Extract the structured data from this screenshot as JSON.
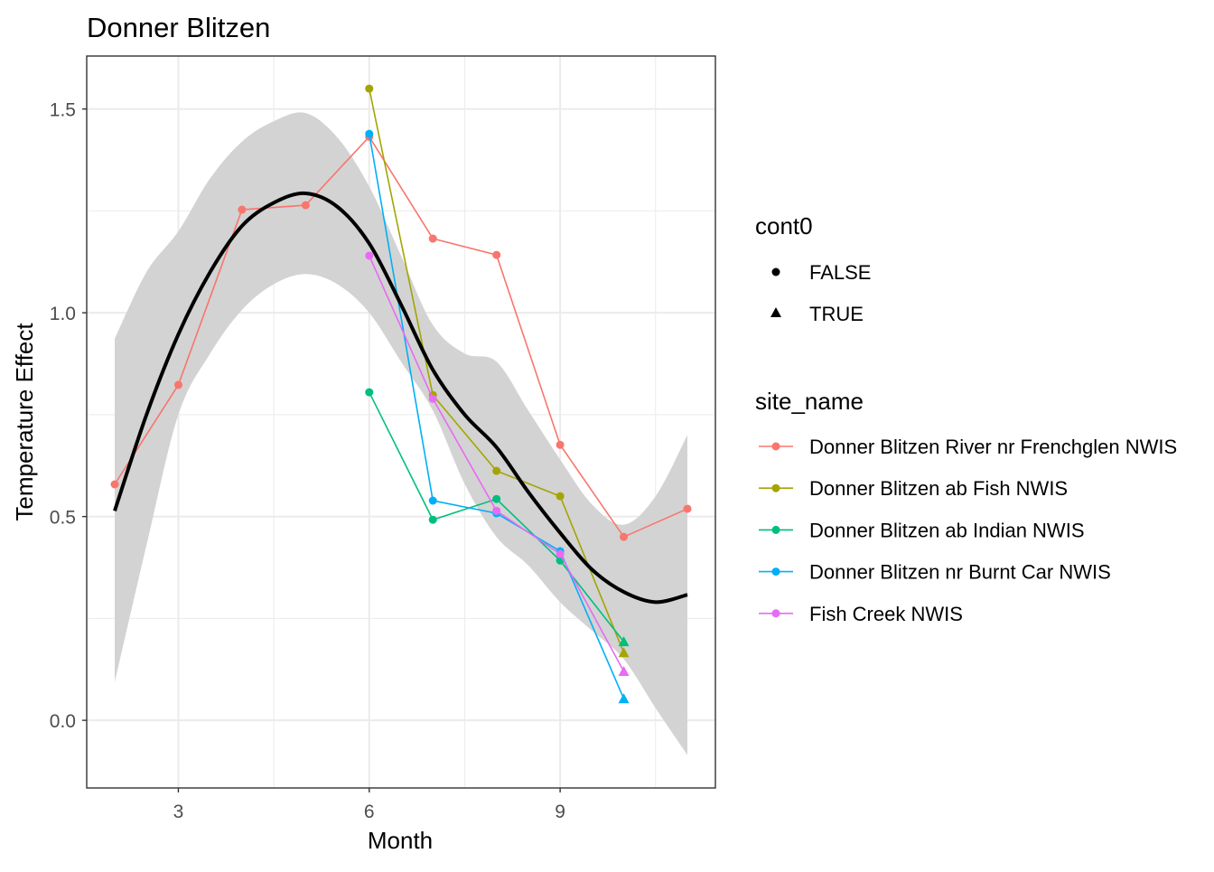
{
  "chart_data": {
    "type": "line",
    "title": "Donner Blitzen",
    "xlabel": "Month",
    "ylabel": "Temperature Effect",
    "xlim": [
      1.56,
      11.44
    ],
    "ylim": [
      -0.166,
      1.63
    ],
    "x_ticks": [
      3,
      6,
      9
    ],
    "y_ticks": [
      0.0,
      0.5,
      1.0,
      1.5
    ],
    "x_tick_labels": [
      "3",
      "6",
      "9"
    ],
    "y_tick_labels": [
      "0.0",
      "0.5",
      "1.0",
      "1.5"
    ],
    "grid": true,
    "legend_position": "right",
    "shape_legend": {
      "title": "cont0",
      "entries": [
        {
          "label": "FALSE",
          "shape": "circle"
        },
        {
          "label": "TRUE",
          "shape": "triangle"
        }
      ]
    },
    "color_legend": {
      "title": "site_name"
    },
    "series": [
      {
        "name": "Donner Blitzen River nr Frenchglen NWIS",
        "color": "#F8766D",
        "x": [
          2,
          3,
          4,
          5,
          6,
          7,
          8,
          9,
          10,
          11
        ],
        "y": [
          0.579,
          0.823,
          1.253,
          1.264,
          1.432,
          1.182,
          1.142,
          0.676,
          0.45,
          0.519
        ],
        "cont0": [
          false,
          false,
          false,
          false,
          false,
          false,
          false,
          false,
          false,
          false
        ]
      },
      {
        "name": "Donner Blitzen ab Fish NWIS",
        "color": "#A3A500",
        "x": [
          6,
          7,
          8,
          9,
          10
        ],
        "y": [
          1.55,
          0.798,
          0.612,
          0.55,
          0.166
        ],
        "cont0": [
          false,
          false,
          false,
          false,
          true
        ]
      },
      {
        "name": "Donner Blitzen ab Indian NWIS",
        "color": "#00BF7D",
        "x": [
          6,
          7,
          8,
          9,
          10
        ],
        "y": [
          0.805,
          0.492,
          0.543,
          0.392,
          0.193
        ],
        "cont0": [
          false,
          false,
          false,
          false,
          true
        ]
      },
      {
        "name": "Donner Blitzen nr Burnt Car NWIS",
        "color": "#00B0F6",
        "x": [
          6,
          7,
          8,
          9,
          10
        ],
        "y": [
          1.439,
          0.539,
          0.508,
          0.415,
          0.053
        ],
        "cont0": [
          false,
          false,
          false,
          false,
          true
        ]
      },
      {
        "name": "Fish Creek NWIS",
        "color": "#E76BF3",
        "x": [
          6,
          7,
          8,
          9,
          10
        ],
        "y": [
          1.14,
          0.789,
          0.514,
          0.408,
          0.12
        ],
        "cont0": [
          false,
          false,
          false,
          false,
          true
        ]
      }
    ],
    "smooth": {
      "color": "#000000",
      "ribbon_color": "#D3D3D3",
      "x": [
        2,
        2.5,
        3,
        3.5,
        4,
        4.5,
        5,
        5.5,
        6,
        6.5,
        7,
        7.5,
        8,
        8.5,
        9,
        9.5,
        10,
        10.5,
        11
      ],
      "y": [
        0.514,
        0.75,
        0.947,
        1.1,
        1.213,
        1.27,
        1.293,
        1.26,
        1.17,
        1.02,
        0.86,
        0.75,
        0.67,
        0.56,
        0.46,
        0.37,
        0.315,
        0.29,
        0.308
      ],
      "ymin": [
        0.093,
        0.43,
        0.75,
        0.9,
        1.007,
        1.07,
        1.095,
        1.07,
        1.0,
        0.88,
        0.76,
        0.58,
        0.45,
        0.38,
        0.29,
        0.22,
        0.15,
        0.03,
        -0.085
      ],
      "ymax": [
        0.936,
        1.1,
        1.2,
        1.33,
        1.42,
        1.47,
        1.49,
        1.43,
        1.31,
        1.14,
        0.97,
        0.9,
        0.88,
        0.76,
        0.64,
        0.53,
        0.48,
        0.55,
        0.7
      ]
    }
  }
}
